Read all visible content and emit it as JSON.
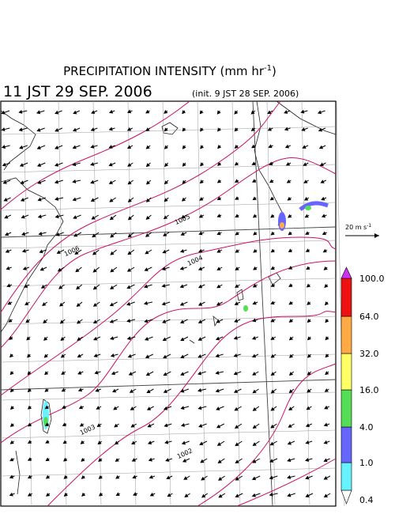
{
  "title": {
    "text": "PRECIPITATION INTENSITY (mm hr",
    "sup": "-1",
    "close": ")"
  },
  "valid_time": "11 JST 29 SEP. 2006",
  "init_time": "(init. 9 JST 28 SEP. 2006)",
  "wind_scale": {
    "text": "20 m s",
    "sup": "-1"
  },
  "contour_labels": [
    "1005",
    "1006",
    "1004",
    "1003",
    "1002"
  ],
  "contour_color": "#cc1166",
  "colorbar": {
    "levels": [
      {
        "label": "0.4",
        "color": "#66f2ff"
      },
      {
        "label": "1.0",
        "color": "#6666ff"
      },
      {
        "label": "4.0",
        "color": "#55dd55"
      },
      {
        "label": "16.0",
        "color": "#ffff66"
      },
      {
        "label": "32.0",
        "color": "#ffaa44"
      },
      {
        "label": "64.0",
        "color": "#ee1111"
      },
      {
        "label": "100.0",
        "color": "#cc33ee"
      }
    ]
  }
}
